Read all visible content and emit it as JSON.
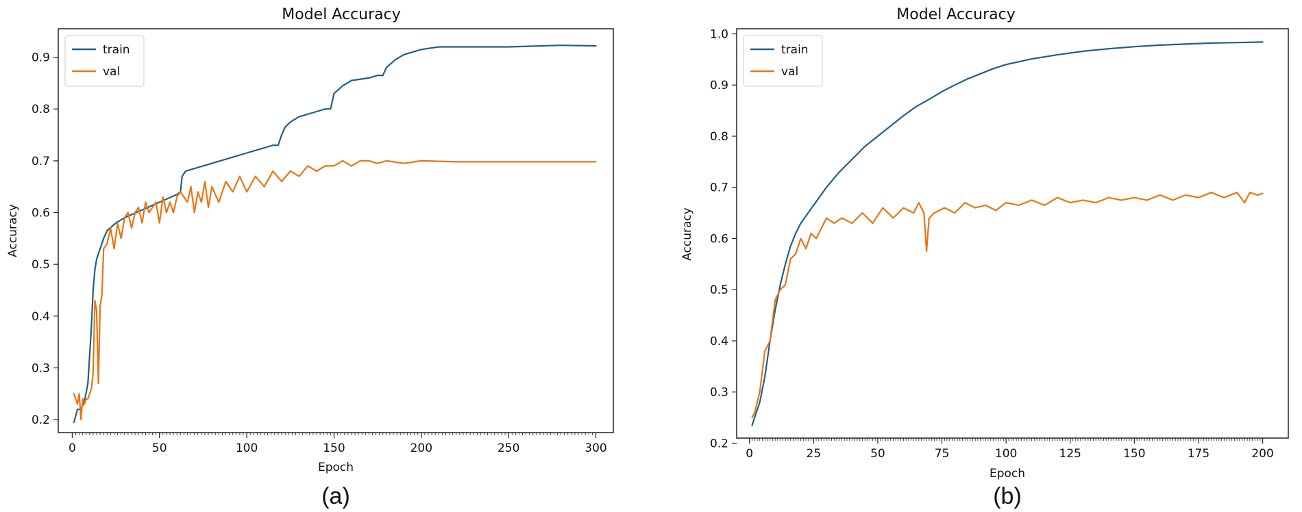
{
  "chart_data": [
    {
      "type": "line",
      "panel_label": "(a)",
      "title": "Model Accuracy",
      "xlabel": "Epoch",
      "ylabel": "Accuracy",
      "xlim": [
        -8,
        310
      ],
      "ylim": [
        0.175,
        0.955
      ],
      "xticks": [
        0,
        50,
        100,
        150,
        200,
        250,
        300
      ],
      "yticks": [
        0.2,
        0.3,
        0.4,
        0.5,
        0.6,
        0.7,
        0.8,
        0.9
      ],
      "legend_position": "upper-left",
      "series": [
        {
          "name": "train",
          "color": "#1f5f8b",
          "x": [
            1,
            3,
            5,
            7,
            9,
            11,
            12,
            13,
            14,
            16,
            18,
            20,
            25,
            30,
            40,
            50,
            60,
            62,
            63,
            65,
            70,
            80,
            90,
            100,
            110,
            115,
            118,
            120,
            122,
            125,
            130,
            140,
            145,
            148,
            150,
            155,
            160,
            170,
            175,
            178,
            180,
            185,
            190,
            200,
            210,
            220,
            250,
            280,
            300
          ],
          "values": [
            0.195,
            0.22,
            0.22,
            0.235,
            0.27,
            0.38,
            0.45,
            0.49,
            0.51,
            0.53,
            0.55,
            0.565,
            0.58,
            0.59,
            0.605,
            0.62,
            0.635,
            0.64,
            0.67,
            0.68,
            0.685,
            0.695,
            0.705,
            0.715,
            0.725,
            0.73,
            0.73,
            0.75,
            0.765,
            0.775,
            0.785,
            0.795,
            0.8,
            0.8,
            0.83,
            0.845,
            0.855,
            0.86,
            0.865,
            0.865,
            0.88,
            0.895,
            0.905,
            0.915,
            0.92,
            0.92,
            0.92,
            0.923,
            0.922
          ]
        },
        {
          "name": "val",
          "color": "#e87511",
          "x": [
            1,
            2,
            3,
            4,
            5,
            6,
            7,
            8,
            9,
            10,
            11,
            12,
            13,
            14,
            15,
            16,
            17,
            18,
            20,
            22,
            24,
            26,
            28,
            30,
            32,
            34,
            36,
            38,
            40,
            42,
            44,
            46,
            48,
            50,
            52,
            54,
            56,
            58,
            60,
            62,
            64,
            66,
            68,
            70,
            72,
            74,
            76,
            78,
            80,
            84,
            88,
            92,
            96,
            100,
            105,
            110,
            115,
            120,
            125,
            130,
            135,
            140,
            145,
            150,
            155,
            160,
            165,
            170,
            175,
            180,
            190,
            200,
            220,
            250,
            280,
            300
          ],
          "values": [
            0.25,
            0.24,
            0.23,
            0.25,
            0.2,
            0.24,
            0.23,
            0.24,
            0.24,
            0.25,
            0.26,
            0.29,
            0.43,
            0.41,
            0.27,
            0.42,
            0.44,
            0.53,
            0.54,
            0.57,
            0.53,
            0.58,
            0.55,
            0.59,
            0.6,
            0.57,
            0.6,
            0.61,
            0.58,
            0.62,
            0.6,
            0.61,
            0.62,
            0.58,
            0.63,
            0.6,
            0.62,
            0.6,
            0.63,
            0.64,
            0.63,
            0.62,
            0.65,
            0.6,
            0.64,
            0.62,
            0.66,
            0.61,
            0.65,
            0.62,
            0.66,
            0.64,
            0.67,
            0.64,
            0.67,
            0.65,
            0.68,
            0.66,
            0.68,
            0.67,
            0.69,
            0.68,
            0.69,
            0.69,
            0.7,
            0.69,
            0.7,
            0.7,
            0.695,
            0.7,
            0.695,
            0.7,
            0.698,
            0.698,
            0.698,
            0.698
          ]
        }
      ]
    },
    {
      "type": "line",
      "panel_label": "(b)",
      "title": "Model Accuracy",
      "xlabel": "Epoch",
      "ylabel": "Accuracy",
      "xlim": [
        -5,
        210
      ],
      "ylim": [
        0.21,
        1.01
      ],
      "xticks": [
        0,
        25,
        50,
        75,
        100,
        125,
        150,
        175,
        200
      ],
      "yticks": [
        0.2,
        0.3,
        0.4,
        0.5,
        0.6,
        0.7,
        0.8,
        0.9,
        1.0
      ],
      "legend_position": "upper-left",
      "series": [
        {
          "name": "train",
          "color": "#1f5f8b",
          "x": [
            1,
            2,
            4,
            6,
            8,
            10,
            12,
            14,
            16,
            18,
            20,
            25,
            30,
            35,
            40,
            45,
            50,
            55,
            60,
            65,
            70,
            75,
            80,
            85,
            90,
            95,
            100,
            110,
            120,
            130,
            140,
            150,
            160,
            170,
            180,
            190,
            200
          ],
          "values": [
            0.235,
            0.25,
            0.28,
            0.33,
            0.4,
            0.46,
            0.51,
            0.55,
            0.585,
            0.61,
            0.63,
            0.665,
            0.7,
            0.73,
            0.755,
            0.78,
            0.8,
            0.82,
            0.84,
            0.858,
            0.872,
            0.887,
            0.9,
            0.912,
            0.922,
            0.932,
            0.94,
            0.951,
            0.959,
            0.966,
            0.971,
            0.975,
            0.978,
            0.98,
            0.982,
            0.983,
            0.984
          ]
        },
        {
          "name": "val",
          "color": "#e87511",
          "x": [
            1,
            2,
            4,
            6,
            8,
            10,
            12,
            14,
            16,
            18,
            20,
            22,
            24,
            26,
            28,
            30,
            33,
            36,
            40,
            44,
            48,
            52,
            56,
            60,
            64,
            66,
            68,
            69,
            70,
            72,
            76,
            80,
            84,
            88,
            92,
            96,
            100,
            105,
            110,
            115,
            120,
            125,
            130,
            135,
            140,
            145,
            150,
            155,
            160,
            165,
            170,
            175,
            180,
            185,
            190,
            193,
            195,
            198,
            200
          ],
          "values": [
            0.25,
            0.26,
            0.3,
            0.38,
            0.4,
            0.48,
            0.5,
            0.51,
            0.56,
            0.57,
            0.6,
            0.58,
            0.61,
            0.6,
            0.62,
            0.64,
            0.63,
            0.64,
            0.63,
            0.65,
            0.63,
            0.66,
            0.64,
            0.66,
            0.65,
            0.67,
            0.65,
            0.575,
            0.64,
            0.65,
            0.66,
            0.65,
            0.67,
            0.66,
            0.665,
            0.655,
            0.67,
            0.665,
            0.675,
            0.665,
            0.68,
            0.67,
            0.675,
            0.67,
            0.68,
            0.675,
            0.68,
            0.675,
            0.685,
            0.675,
            0.685,
            0.68,
            0.69,
            0.68,
            0.69,
            0.67,
            0.69,
            0.685,
            0.688
          ]
        }
      ]
    }
  ]
}
